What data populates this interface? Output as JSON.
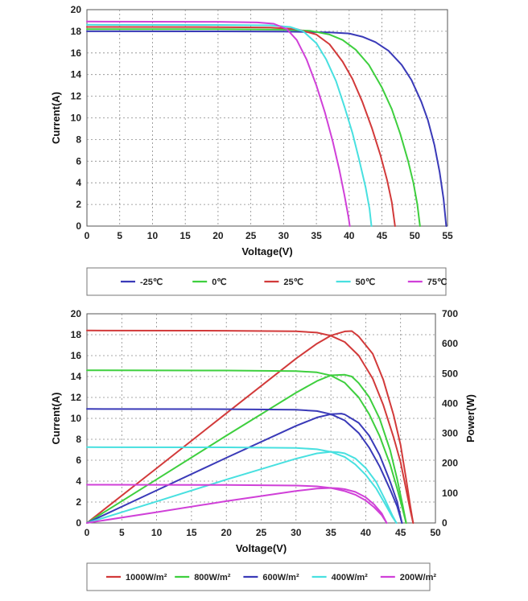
{
  "chart_data": [
    {
      "type": "line",
      "xlabel": "Voltage(V)",
      "ylabel": "Current(A)",
      "xlim": [
        0,
        55
      ],
      "ylim": [
        0,
        20
      ],
      "xticks": [
        0,
        5,
        10,
        15,
        20,
        25,
        30,
        35,
        40,
        45,
        50,
        55
      ],
      "yticks": [
        0,
        2,
        4,
        6,
        8,
        10,
        12,
        14,
        16,
        18,
        20
      ],
      "grid": true,
      "legend": "bottom",
      "series": [
        {
          "name": "-25℃",
          "color": "#3a3ab8",
          "points": [
            [
              0,
              18.0
            ],
            [
              20,
              17.99
            ],
            [
              30,
              17.97
            ],
            [
              37,
              17.9
            ],
            [
              40,
              17.8
            ],
            [
              42,
              17.5
            ],
            [
              44,
              17.0
            ],
            [
              46,
              16.2
            ],
            [
              48,
              14.9
            ],
            [
              49.5,
              13.5
            ],
            [
              51,
              11.5
            ],
            [
              52,
              9.8
            ],
            [
              53,
              7.5
            ],
            [
              53.8,
              5.0
            ],
            [
              54.4,
              2.5
            ],
            [
              54.8,
              0
            ]
          ]
        },
        {
          "name": "0℃",
          "color": "#3ecf3e",
          "points": [
            [
              0,
              18.2
            ],
            [
              20,
              18.19
            ],
            [
              30,
              18.15
            ],
            [
              34,
              18.05
            ],
            [
              37,
              17.7
            ],
            [
              39,
              17.2
            ],
            [
              41,
              16.3
            ],
            [
              43,
              14.9
            ],
            [
              45,
              12.8
            ],
            [
              46.5,
              10.8
            ],
            [
              47.8,
              8.5
            ],
            [
              49,
              6.0
            ],
            [
              49.8,
              4.0
            ],
            [
              50.4,
              2.0
            ],
            [
              50.8,
              0
            ]
          ]
        },
        {
          "name": "25℃",
          "color": "#d23a3a",
          "points": [
            [
              0,
              18.4
            ],
            [
              20,
              18.39
            ],
            [
              28,
              18.34
            ],
            [
              32,
              18.2
            ],
            [
              35,
              17.7
            ],
            [
              37,
              16.8
            ],
            [
              39,
              15.2
            ],
            [
              40.5,
              13.6
            ],
            [
              42,
              11.5
            ],
            [
              43.5,
              9.0
            ],
            [
              44.8,
              6.5
            ],
            [
              45.8,
              4.2
            ],
            [
              46.5,
              2.2
            ],
            [
              47.0,
              0
            ]
          ]
        },
        {
          "name": "50℃",
          "color": "#48e0e0",
          "points": [
            [
              0,
              18.6
            ],
            [
              20,
              18.59
            ],
            [
              28,
              18.55
            ],
            [
              31,
              18.4
            ],
            [
              33,
              18.0
            ],
            [
              35,
              16.9
            ],
            [
              36.5,
              15.4
            ],
            [
              38,
              13.4
            ],
            [
              39.3,
              11.0
            ],
            [
              40.5,
              8.6
            ],
            [
              41.5,
              6.2
            ],
            [
              42.5,
              3.6
            ],
            [
              43.1,
              1.6
            ],
            [
              43.4,
              0
            ]
          ]
        },
        {
          "name": "75℃",
          "color": "#d040d8",
          "points": [
            [
              0,
              18.9
            ],
            [
              20,
              18.88
            ],
            [
              26,
              18.82
            ],
            [
              28.5,
              18.7
            ],
            [
              30.5,
              18.2
            ],
            [
              32,
              17.2
            ],
            [
              33.5,
              15.4
            ],
            [
              35,
              13.0
            ],
            [
              36.3,
              10.5
            ],
            [
              37.5,
              7.8
            ],
            [
              38.5,
              5.2
            ],
            [
              39.3,
              2.8
            ],
            [
              39.9,
              0.8
            ],
            [
              40.1,
              0
            ]
          ]
        }
      ]
    },
    {
      "type": "line",
      "xlabel": "Voltage(V)",
      "ylabel": "Current(A)",
      "y2label": "Power(W)",
      "xlim": [
        0,
        50
      ],
      "ylim": [
        0,
        20
      ],
      "y2lim": [
        0,
        700
      ],
      "xticks": [
        0,
        5,
        10,
        15,
        20,
        25,
        30,
        35,
        40,
        45,
        50
      ],
      "yticks": [
        0,
        2,
        4,
        6,
        8,
        10,
        12,
        14,
        16,
        18,
        20
      ],
      "y2ticks": [
        0,
        100,
        200,
        300,
        400,
        500,
        600,
        700
      ],
      "grid": true,
      "legend": "bottom",
      "series": [
        {
          "name": "1000W/m²",
          "color": "#d23a3a",
          "current": [
            [
              0,
              18.4
            ],
            [
              20,
              18.38
            ],
            [
              30,
              18.32
            ],
            [
              33,
              18.2
            ],
            [
              35,
              17.9
            ],
            [
              37,
              17.3
            ],
            [
              39,
              16.0
            ],
            [
              41,
              13.8
            ],
            [
              42.5,
              11.3
            ],
            [
              44,
              8.2
            ],
            [
              45,
              5.8
            ],
            [
              45.8,
              3.2
            ],
            [
              46.4,
              1.2
            ],
            [
              46.8,
              0
            ]
          ],
          "power": [
            [
              0,
              0
            ],
            [
              10,
              183
            ],
            [
              20,
              367
            ],
            [
              30,
              550
            ],
            [
              33,
              600
            ],
            [
              35,
              627
            ],
            [
              37,
              641
            ],
            [
              38,
              642
            ],
            [
              39,
              624
            ],
            [
              41,
              566
            ],
            [
              42.5,
              480
            ],
            [
              44,
              361
            ],
            [
              45,
              261
            ],
            [
              45.8,
              147
            ],
            [
              46.4,
              56
            ],
            [
              46.8,
              0
            ]
          ]
        },
        {
          "name": "800W/m²",
          "color": "#3ecf3e",
          "current": [
            [
              0,
              14.6
            ],
            [
              20,
              14.58
            ],
            [
              30,
              14.52
            ],
            [
              33,
              14.4
            ],
            [
              35,
              14.1
            ],
            [
              37,
              13.4
            ],
            [
              39,
              12.0
            ],
            [
              40.5,
              10.4
            ],
            [
              42,
              8.3
            ],
            [
              43.5,
              5.6
            ],
            [
              44.5,
              3.3
            ],
            [
              45.3,
              1.3
            ],
            [
              45.8,
              0
            ]
          ],
          "power": [
            [
              0,
              0
            ],
            [
              10,
              146
            ],
            [
              20,
              292
            ],
            [
              30,
              436
            ],
            [
              33,
              475
            ],
            [
              35,
              494
            ],
            [
              37,
              496
            ],
            [
              38,
              490
            ],
            [
              39,
              468
            ],
            [
              40.5,
              421
            ],
            [
              42,
              349
            ],
            [
              43.5,
              244
            ],
            [
              44.5,
              147
            ],
            [
              45.3,
              59
            ],
            [
              45.8,
              0
            ]
          ]
        },
        {
          "name": "600W/m²",
          "color": "#3a3ab8",
          "current": [
            [
              0,
              10.9
            ],
            [
              20,
              10.88
            ],
            [
              30,
              10.82
            ],
            [
              33,
              10.7
            ],
            [
              35,
              10.4
            ],
            [
              37,
              9.8
            ],
            [
              39,
              8.6
            ],
            [
              40.5,
              7.2
            ],
            [
              42,
              5.4
            ],
            [
              43.5,
              3.2
            ],
            [
              44.5,
              1.6
            ],
            [
              45.2,
              0
            ]
          ],
          "power": [
            [
              0,
              0
            ],
            [
              10,
              109
            ],
            [
              20,
              218
            ],
            [
              30,
              325
            ],
            [
              33,
              353
            ],
            [
              35,
              364
            ],
            [
              36.5,
              366
            ],
            [
              37,
              363
            ],
            [
              39,
              335
            ],
            [
              40.5,
              292
            ],
            [
              42,
              227
            ],
            [
              43.5,
              139
            ],
            [
              44.5,
              71
            ],
            [
              45.2,
              0
            ]
          ]
        },
        {
          "name": "400W/m²",
          "color": "#48e0e0",
          "current": [
            [
              0,
              7.25
            ],
            [
              20,
              7.23
            ],
            [
              30,
              7.18
            ],
            [
              33,
              7.05
            ],
            [
              35,
              6.8
            ],
            [
              37,
              6.3
            ],
            [
              38.5,
              5.6
            ],
            [
              40,
              4.6
            ],
            [
              41.5,
              3.3
            ],
            [
              42.8,
              1.8
            ],
            [
              43.8,
              0.6
            ],
            [
              44.4,
              0
            ]
          ],
          "power": [
            [
              0,
              0
            ],
            [
              10,
              72
            ],
            [
              20,
              145
            ],
            [
              30,
              215
            ],
            [
              33,
              233
            ],
            [
              35,
              238
            ],
            [
              36,
              237
            ],
            [
              37,
              233
            ],
            [
              38.5,
              216
            ],
            [
              40,
              184
            ],
            [
              41.5,
              137
            ],
            [
              42.8,
              77
            ],
            [
              43.8,
              26
            ],
            [
              44.4,
              0
            ]
          ]
        },
        {
          "name": "200W/m²",
          "color": "#d040d8",
          "current": [
            [
              0,
              3.65
            ],
            [
              20,
              3.63
            ],
            [
              30,
              3.58
            ],
            [
              33,
              3.5
            ],
            [
              35,
              3.35
            ],
            [
              37,
              3.05
            ],
            [
              38.5,
              2.7
            ],
            [
              40,
              2.15
            ],
            [
              41.2,
              1.5
            ],
            [
              42.3,
              0.75
            ],
            [
              43,
              0
            ]
          ],
          "power": [
            [
              0,
              0
            ],
            [
              10,
              36
            ],
            [
              20,
              73
            ],
            [
              30,
              107
            ],
            [
              33,
              115
            ],
            [
              35,
              117
            ],
            [
              36,
              116
            ],
            [
              37,
              113
            ],
            [
              38.5,
              104
            ],
            [
              40,
              86
            ],
            [
              41.2,
              62
            ],
            [
              42.3,
              32
            ],
            [
              43,
              0
            ]
          ]
        }
      ]
    }
  ]
}
